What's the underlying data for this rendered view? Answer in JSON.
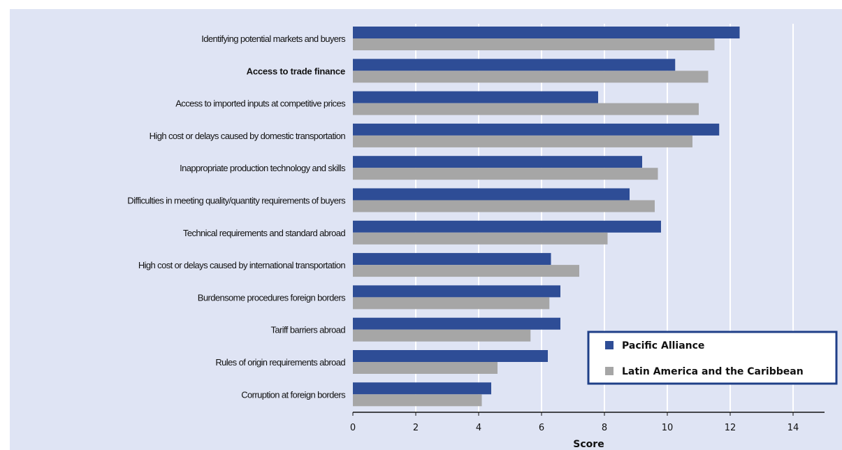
{
  "chart_data": {
    "type": "bar",
    "orientation": "horizontal",
    "categories": [
      "Identifying potential markets and buyers",
      "Access to trade finance",
      "Access to imported inputs at competitive prices",
      "High cost or delays caused by domestic transportation",
      "Inappropriate production technology and skills",
      "Difficulties in meeting quality/quantity requirements of buyers",
      "Technical requirements and standard abroad",
      "High cost or delays caused by international transportation",
      "Burdensome procedures foreign borders",
      "Tariff barriers abroad",
      "Rules of origin requirements abroad",
      "Corruption at foreign borders"
    ],
    "emphasized_category": "Access to trade finance",
    "series": [
      {
        "name": "Pacific Alliance",
        "color": "#2e4d96",
        "values": [
          12.3,
          10.25,
          7.8,
          11.65,
          9.2,
          8.8,
          9.8,
          6.3,
          6.6,
          6.6,
          6.2,
          4.4
        ]
      },
      {
        "name": "Latin America and the Caribbean",
        "color": "#a6a6a6",
        "values": [
          11.5,
          11.3,
          11.0,
          10.8,
          9.7,
          9.6,
          8.1,
          7.2,
          6.25,
          5.65,
          4.6,
          4.1
        ]
      }
    ],
    "xlabel": "Score",
    "ylabel": "",
    "xlim": [
      0,
      15
    ],
    "xticks": [
      0,
      2,
      4,
      6,
      8,
      10,
      12,
      14
    ],
    "grid": "vertical",
    "legend_position": "bottom-right",
    "background_color": "#dfe4f4",
    "legend_border_color": "#1f3f88"
  }
}
